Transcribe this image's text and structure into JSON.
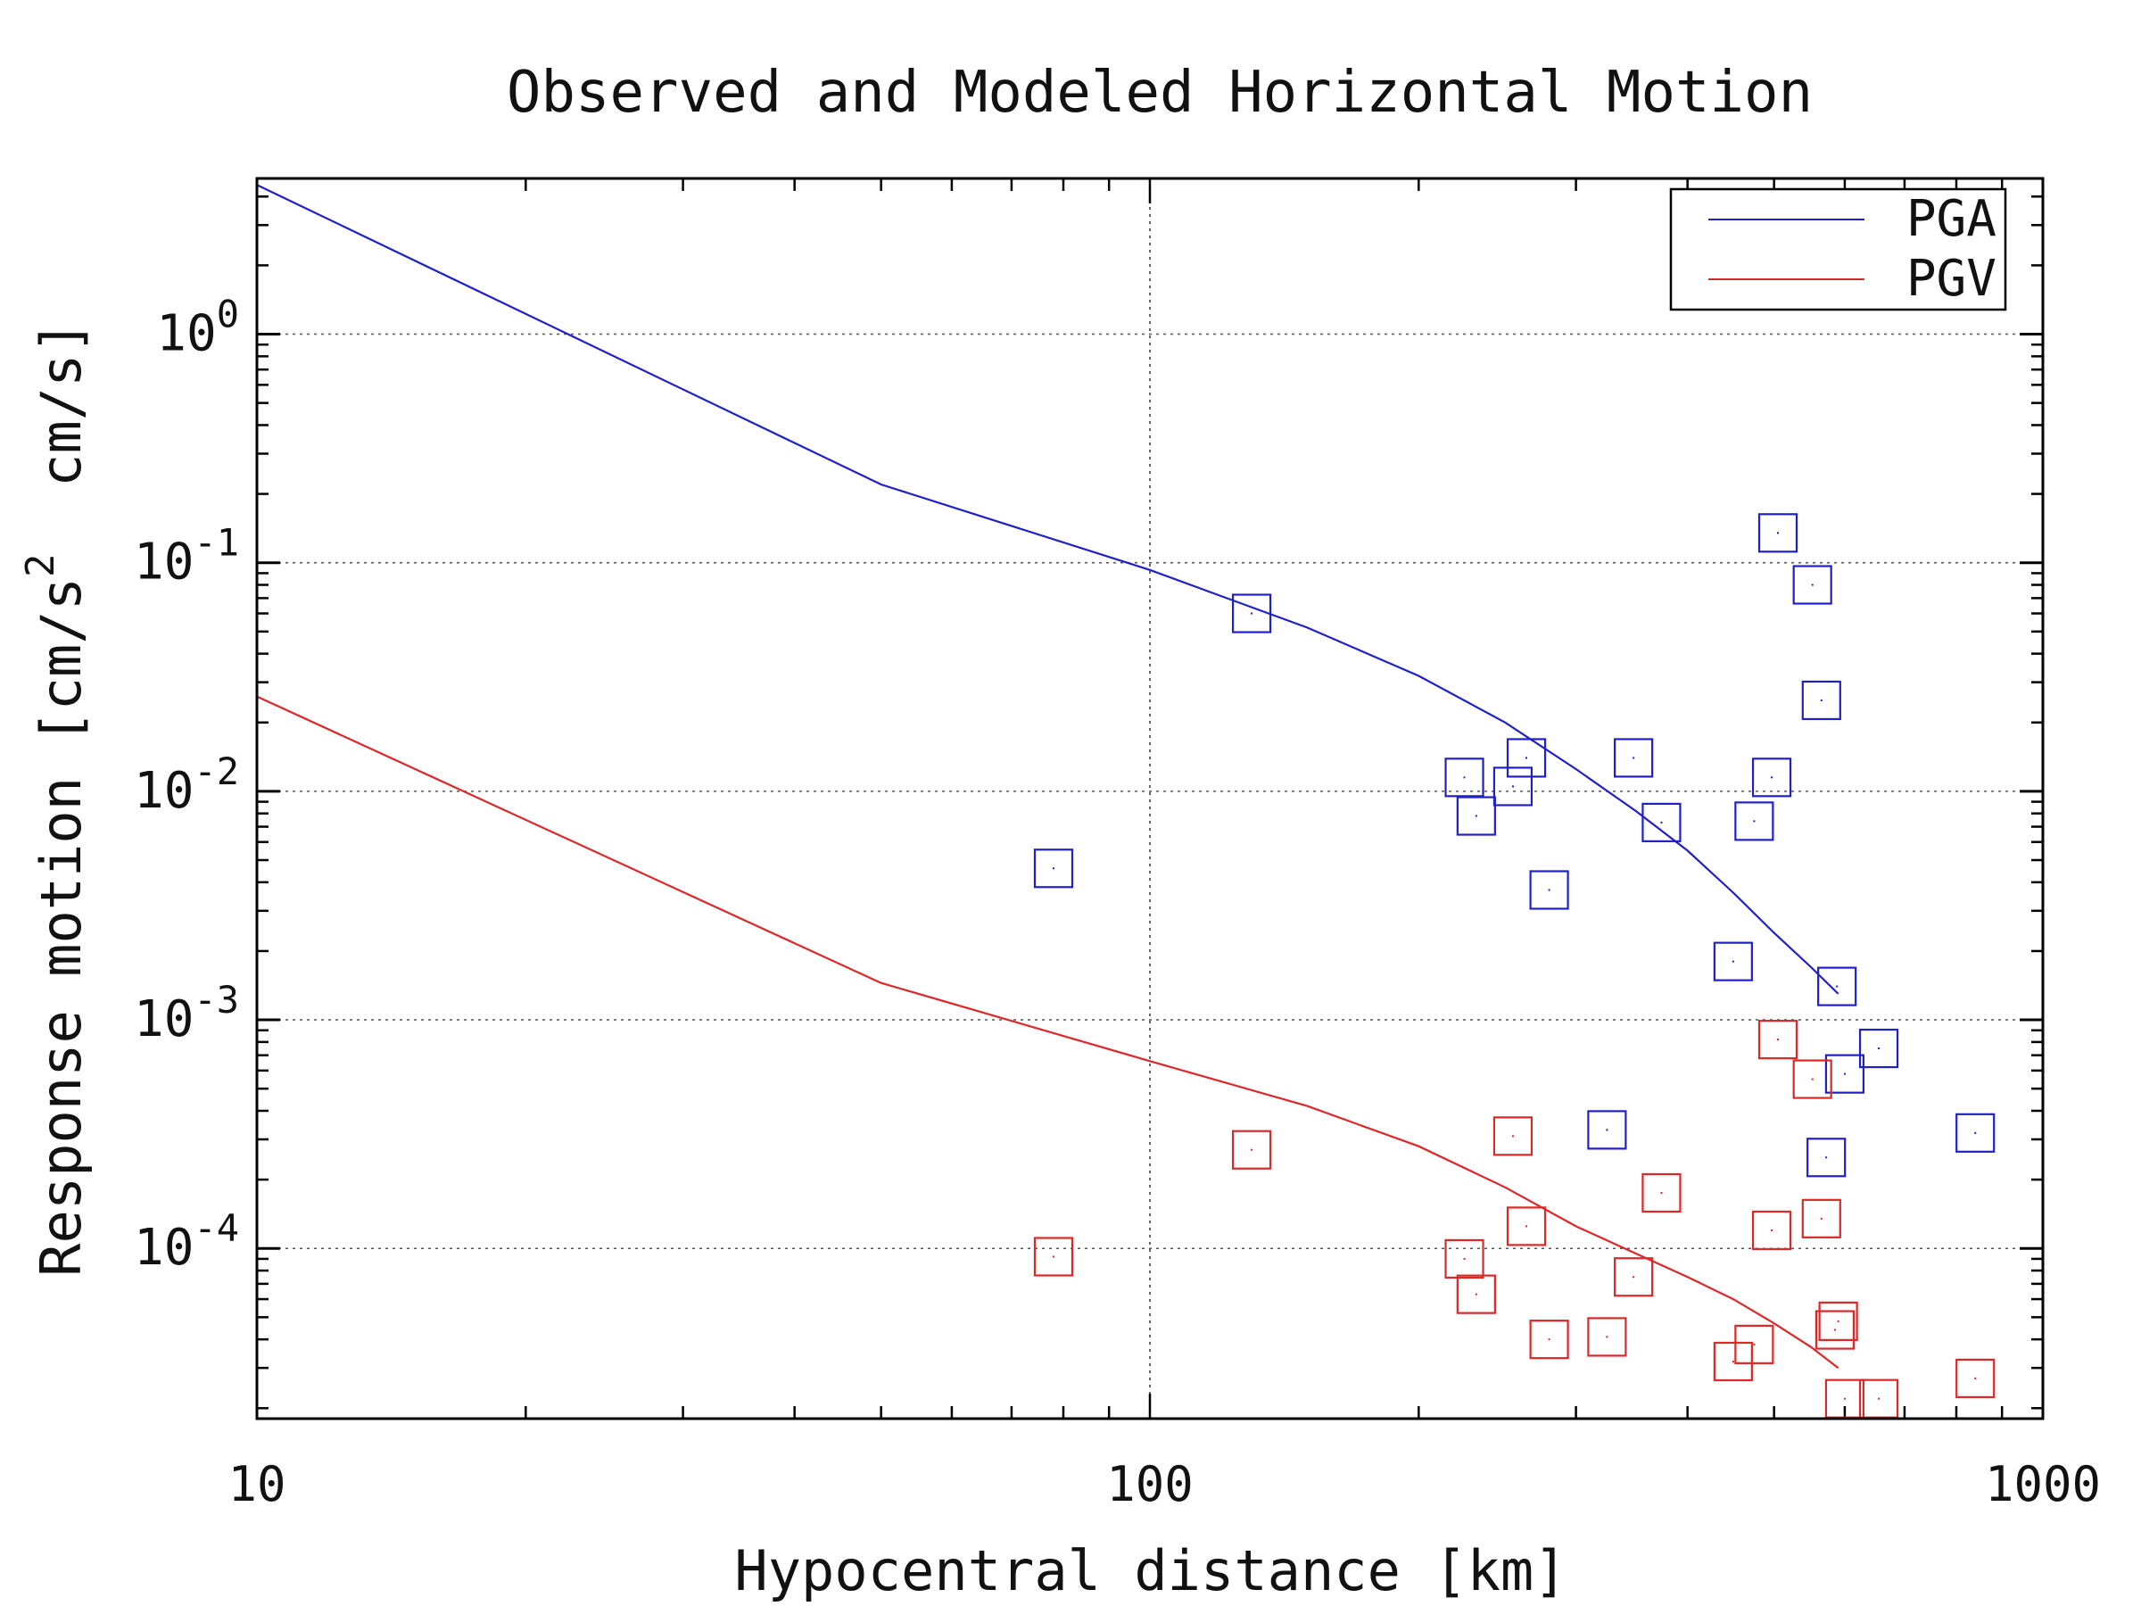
{
  "chart_data": {
    "type": "scatter",
    "title": "Observed and Modeled Horizontal Motion",
    "xlabel": "Hypocentral distance [km]",
    "ylabel": {
      "prefix": "Response motion [cm/s",
      "sup": "2",
      "suffix": "  cm/s]"
    },
    "x_scale": "log",
    "y_scale": "log",
    "xlim": [
      10,
      1000
    ],
    "ylim": [
      1.8e-05,
      4.8
    ],
    "grid": true,
    "legend_position": "top-right",
    "x_ticks": [
      {
        "value": 10,
        "label": "10"
      },
      {
        "value": 100,
        "label": "100"
      },
      {
        "value": 1000,
        "label": "1000"
      }
    ],
    "y_ticks": [
      {
        "value": 1,
        "base": "10",
        "exp": "0"
      },
      {
        "value": 0.1,
        "base": "10",
        "exp": "-1"
      },
      {
        "value": 0.01,
        "base": "10",
        "exp": "-2"
      },
      {
        "value": 0.001,
        "base": "10",
        "exp": "-3"
      },
      {
        "value": 0.0001,
        "base": "10",
        "exp": "-4"
      }
    ],
    "series": [
      {
        "name": "PGA",
        "color": "#2020c8",
        "model_curve": [
          [
            10,
            4.5
          ],
          [
            50,
            0.22
          ],
          [
            100,
            0.093
          ],
          [
            150,
            0.052
          ],
          [
            200,
            0.032
          ],
          [
            250,
            0.02
          ],
          [
            300,
            0.0125
          ],
          [
            350,
            0.0082
          ],
          [
            400,
            0.0055
          ],
          [
            450,
            0.0036
          ],
          [
            500,
            0.0024
          ],
          [
            550,
            0.0017
          ],
          [
            590,
            0.0013
          ]
        ],
        "observed": [
          [
            78,
            0.0046
          ],
          [
            130,
            0.06
          ],
          [
            225,
            0.0115
          ],
          [
            232,
            0.0078
          ],
          [
            255,
            0.0105
          ],
          [
            264,
            0.014
          ],
          [
            280,
            0.0037
          ],
          [
            325,
            0.00033
          ],
          [
            348,
            0.014
          ],
          [
            374,
            0.0073
          ],
          [
            450,
            0.0018
          ],
          [
            475,
            0.0074
          ],
          [
            497,
            0.0115
          ],
          [
            505,
            0.135
          ],
          [
            552,
            0.08
          ],
          [
            565,
            0.025
          ],
          [
            572,
            0.00025
          ],
          [
            588,
            0.0014
          ],
          [
            600,
            0.00058
          ],
          [
            655,
            0.00075
          ],
          [
            840,
            0.00032
          ]
        ]
      },
      {
        "name": "PGV",
        "color": "#dc2828",
        "model_curve": [
          [
            10,
            0.026
          ],
          [
            50,
            0.00145
          ],
          [
            100,
            0.00066
          ],
          [
            150,
            0.00042
          ],
          [
            200,
            0.00028
          ],
          [
            250,
            0.000185
          ],
          [
            300,
            0.000125
          ],
          [
            350,
            9.5e-05
          ],
          [
            400,
            7.5e-05
          ],
          [
            450,
            6e-05
          ],
          [
            500,
            4.7e-05
          ],
          [
            550,
            3.7e-05
          ],
          [
            590,
            3e-05
          ]
        ],
        "observed": [
          [
            78,
            9.2e-05
          ],
          [
            130,
            0.00027
          ],
          [
            225,
            9e-05
          ],
          [
            232,
            6.3e-05
          ],
          [
            255,
            0.00031
          ],
          [
            264,
            0.000125
          ],
          [
            280,
            4e-05
          ],
          [
            325,
            4.1e-05
          ],
          [
            348,
            7.5e-05
          ],
          [
            374,
            0.000175
          ],
          [
            450,
            3.2e-05
          ],
          [
            475,
            3.8e-05
          ],
          [
            497,
            0.00012
          ],
          [
            505,
            0.00082
          ],
          [
            552,
            0.00055
          ],
          [
            565,
            0.000135
          ],
          [
            585,
            4.4e-05
          ],
          [
            590,
            4.8e-05
          ],
          [
            600,
            2.2e-05
          ],
          [
            655,
            2.2e-05
          ],
          [
            840,
            2.7e-05
          ]
        ]
      }
    ]
  }
}
